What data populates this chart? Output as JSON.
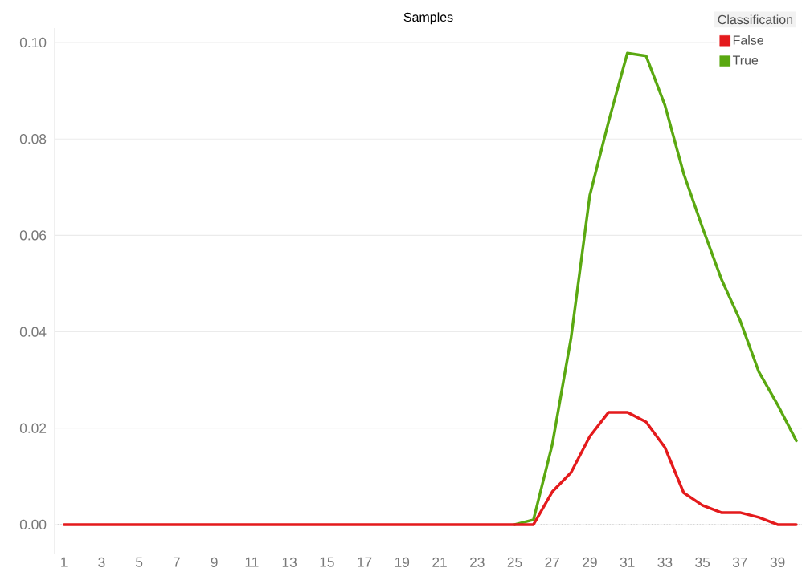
{
  "chart_data": {
    "type": "line",
    "title": "Samples",
    "legend_title": "Classification",
    "x": [
      1,
      2,
      3,
      4,
      5,
      6,
      7,
      8,
      9,
      10,
      11,
      12,
      13,
      14,
      15,
      16,
      17,
      18,
      19,
      20,
      21,
      22,
      23,
      24,
      25,
      26,
      27,
      28,
      29,
      30,
      31,
      32,
      33,
      34,
      35,
      36,
      37,
      38,
      39,
      40
    ],
    "xlim": [
      0.5,
      40.3
    ],
    "xticks": [
      1,
      3,
      5,
      7,
      9,
      11,
      13,
      15,
      17,
      19,
      21,
      23,
      25,
      27,
      29,
      31,
      33,
      35,
      37,
      39
    ],
    "ylim": [
      -0.006,
      0.103
    ],
    "yticks": [
      {
        "value": 0,
        "label": "0.00"
      },
      {
        "value": 0.02,
        "label": "0.02"
      },
      {
        "value": 0.04,
        "label": "0.04"
      },
      {
        "value": 0.06,
        "label": "0.06"
      },
      {
        "value": 0.08,
        "label": "0.08"
      },
      {
        "value": 0.1,
        "label": "0.10"
      }
    ],
    "series": [
      {
        "name": "False",
        "color": "#e41a1c",
        "values": [
          0,
          0,
          0,
          0,
          0,
          0,
          0,
          0,
          0,
          0,
          0,
          0,
          0,
          0,
          0,
          0,
          0,
          0,
          0,
          0,
          0,
          0,
          0,
          0,
          0,
          0,
          0.0068,
          0.0108,
          0.0183,
          0.0233,
          0.0233,
          0.0213,
          0.016,
          0.0066,
          0.004,
          0.0025,
          0.0025,
          0.0015,
          0,
          0
        ]
      },
      {
        "name": "True",
        "color": "#5aa811",
        "values": [
          null,
          null,
          null,
          null,
          null,
          null,
          null,
          null,
          null,
          null,
          null,
          null,
          null,
          null,
          null,
          null,
          null,
          null,
          null,
          null,
          null,
          null,
          null,
          null,
          0,
          0.001,
          0.0166,
          0.0387,
          0.0683,
          0.0836,
          0.0978,
          0.0972,
          0.087,
          0.0728,
          0.0616,
          0.051,
          0.0424,
          0.0317,
          0.0249,
          0.0174
        ]
      }
    ],
    "ref_lines": [
      {
        "axis": "y",
        "value": 0,
        "color": "#aaaaaa",
        "line_style": "dotted"
      }
    ],
    "grid": "y",
    "legend": "top right",
    "marker": "none",
    "line_style": "solid"
  }
}
